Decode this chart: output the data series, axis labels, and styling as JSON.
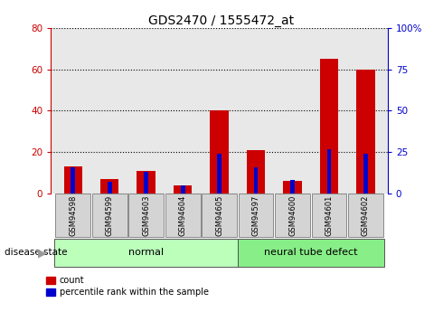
{
  "title": "GDS2470 / 1555472_at",
  "categories": [
    "GSM94598",
    "GSM94599",
    "GSM94603",
    "GSM94604",
    "GSM94605",
    "GSM94597",
    "GSM94600",
    "GSM94601",
    "GSM94602"
  ],
  "red_values": [
    13,
    7,
    11,
    4,
    40,
    21,
    6,
    65,
    60
  ],
  "blue_values": [
    16,
    7,
    13,
    5,
    24,
    16,
    8,
    27,
    24
  ],
  "groups": [
    {
      "label": "normal",
      "start": 0,
      "end": 5
    },
    {
      "label": "neural tube defect",
      "start": 5,
      "end": 9
    }
  ],
  "left_ylim": [
    0,
    80
  ],
  "right_ylim": [
    0,
    100
  ],
  "left_yticks": [
    0,
    20,
    40,
    60,
    80
  ],
  "right_yticks": [
    0,
    25,
    50,
    75,
    100
  ],
  "right_yticklabels": [
    "0",
    "25",
    "50",
    "75",
    "100%"
  ],
  "bar_color_red": "#cc0000",
  "bar_color_blue": "#0000cc",
  "group_bg_normal": "#bbffbb",
  "group_bg_defect": "#88ee88",
  "axes_bg": "#e8e8e8",
  "grid_color": "black",
  "left_axis_color": "#cc0000",
  "right_axis_color": "#0000cc",
  "bar_width": 0.5,
  "blue_bar_width": 0.12,
  "figsize": [
    4.9,
    3.45
  ],
  "dpi": 100
}
